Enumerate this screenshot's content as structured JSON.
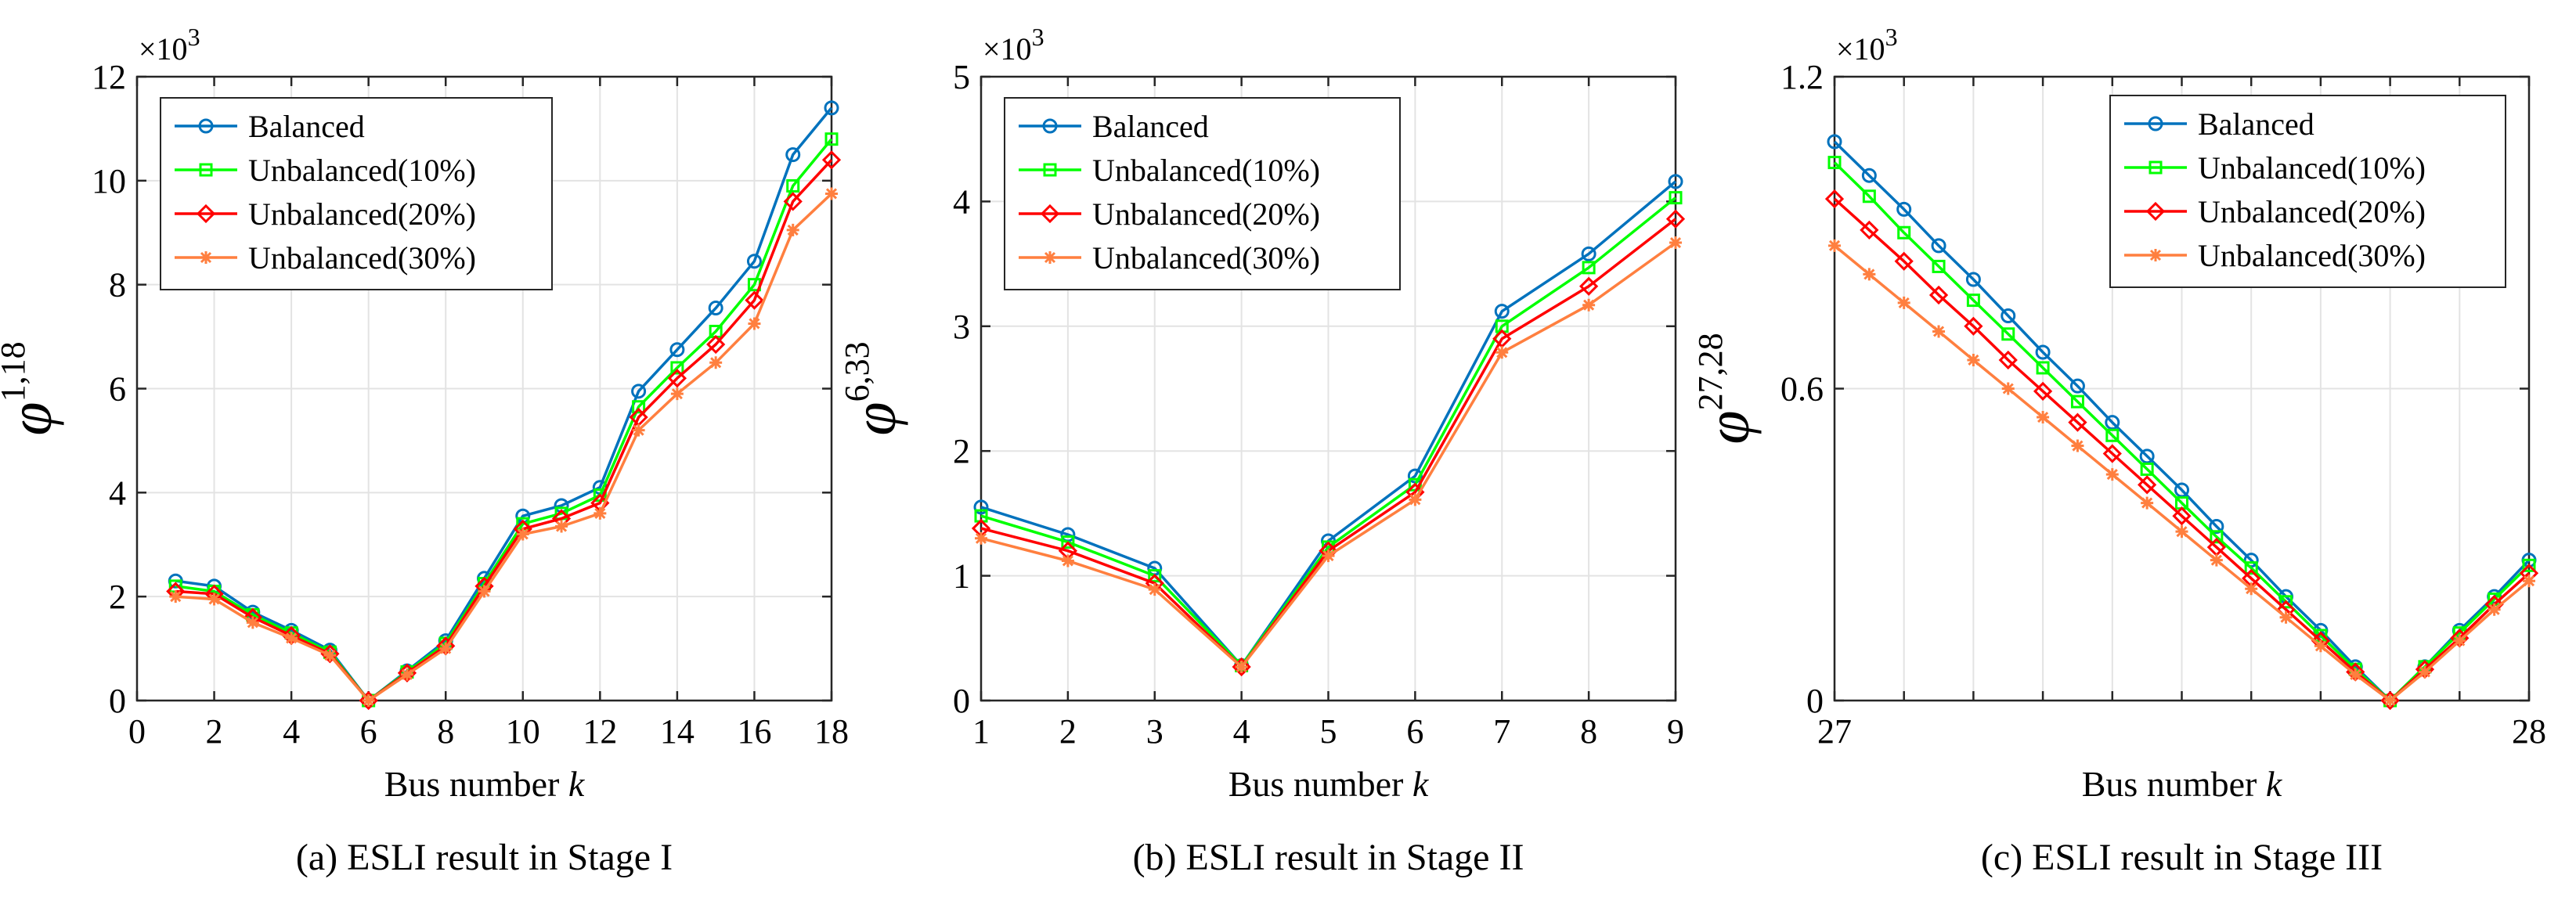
{
  "series_colors": [
    "#0072BD",
    "#00FF00",
    "#FF0000",
    "#FF7F3F"
  ],
  "series_names": [
    "Balanced",
    "Unbalanced(10%)",
    "Unbalanced(20%)",
    "Unbalanced(30%)"
  ],
  "series_markers": [
    "circle",
    "square",
    "diamond",
    "asterisk"
  ],
  "chart_data": [
    {
      "type": "line",
      "caption": "(a) ESLI result in Stage I",
      "xlabel": "Bus number",
      "xlabel_var": "k",
      "ylabel_sym": "φ",
      "ylabel_sup": "1,18",
      "multiplier_base": "×10",
      "multiplier_exp": "3",
      "xlim": [
        0,
        18
      ],
      "ylim": [
        0,
        12
      ],
      "xticks": [
        0,
        2,
        4,
        6,
        8,
        10,
        12,
        14,
        16,
        18
      ],
      "yticks": [
        0,
        2,
        4,
        6,
        8,
        10,
        12
      ],
      "x_tick_labels": [
        "0",
        "2",
        "4",
        "6",
        "8",
        "10",
        "12",
        "14",
        "16",
        "18"
      ],
      "y_tick_labels": [
        "0",
        "2",
        "4",
        "6",
        "8",
        "10",
        "12"
      ],
      "legend": "top-left",
      "grid": true,
      "x": [
        1,
        2,
        3,
        4,
        5,
        6,
        7,
        8,
        9,
        10,
        11,
        12,
        13,
        14,
        15,
        16,
        17,
        18
      ],
      "series": [
        {
          "name": "Balanced",
          "values": [
            2.3,
            2.2,
            1.7,
            1.35,
            0.97,
            0,
            0.57,
            1.15,
            2.35,
            3.55,
            3.75,
            4.1,
            5.95,
            6.75,
            7.55,
            8.45,
            10.5,
            11.4
          ]
        },
        {
          "name": "Unbalanced(10%)",
          "values": [
            2.2,
            2.1,
            1.65,
            1.3,
            0.93,
            0,
            0.55,
            1.1,
            2.25,
            3.4,
            3.6,
            3.95,
            5.65,
            6.4,
            7.1,
            8.0,
            9.9,
            10.8
          ]
        },
        {
          "name": "Unbalanced(20%)",
          "values": [
            2.1,
            2.05,
            1.6,
            1.25,
            0.9,
            0,
            0.53,
            1.05,
            2.2,
            3.3,
            3.5,
            3.8,
            5.45,
            6.2,
            6.85,
            7.7,
            9.6,
            10.4
          ]
        },
        {
          "name": "Unbalanced(30%)",
          "values": [
            2.0,
            1.95,
            1.5,
            1.2,
            0.87,
            0,
            0.5,
            1.0,
            2.1,
            3.2,
            3.35,
            3.6,
            5.2,
            5.9,
            6.5,
            7.25,
            9.05,
            9.75
          ]
        }
      ]
    },
    {
      "type": "line",
      "caption": "(b) ESLI result in Stage II",
      "xlabel": "Bus number",
      "xlabel_var": "k",
      "ylabel_sym": "φ",
      "ylabel_sup": "6,33",
      "multiplier_base": "×10",
      "multiplier_exp": "3",
      "xlim": [
        1,
        9
      ],
      "ylim": [
        0,
        5
      ],
      "xticks": [
        1,
        2,
        3,
        4,
        5,
        6,
        7,
        8,
        9
      ],
      "yticks": [
        0,
        1,
        2,
        3,
        4,
        5
      ],
      "x_tick_labels": [
        "1",
        "2",
        "3",
        "4",
        "5",
        "6",
        "7",
        "8",
        "9"
      ],
      "y_tick_labels": [
        "0",
        "1",
        "2",
        "3",
        "4",
        "5"
      ],
      "legend": "top-left",
      "grid": true,
      "x": [
        1,
        2,
        3,
        4,
        5,
        6,
        7,
        8,
        9
      ],
      "series": [
        {
          "name": "Balanced",
          "values": [
            1.55,
            1.33,
            1.06,
            0.28,
            1.28,
            1.8,
            3.12,
            3.58,
            4.16
          ]
        },
        {
          "name": "Unbalanced(10%)",
          "values": [
            1.48,
            1.27,
            1.0,
            0.28,
            1.23,
            1.73,
            3.0,
            3.47,
            4.03
          ]
        },
        {
          "name": "Unbalanced(20%)",
          "values": [
            1.38,
            1.2,
            0.94,
            0.27,
            1.2,
            1.67,
            2.9,
            3.32,
            3.86
          ]
        },
        {
          "name": "Unbalanced(30%)",
          "values": [
            1.3,
            1.12,
            0.89,
            0.27,
            1.16,
            1.61,
            2.79,
            3.17,
            3.67
          ]
        }
      ]
    },
    {
      "type": "line",
      "caption": "(c) ESLI result in Stage III",
      "xlabel": "Bus number",
      "xlabel_var": "k",
      "ylabel_sym": "φ",
      "ylabel_sup": "27,28",
      "multiplier_base": "×10",
      "multiplier_exp": "3",
      "xlim": [
        0,
        20
      ],
      "ylim": [
        0,
        1.2
      ],
      "xticks": [
        0,
        2,
        4,
        6,
        8,
        10,
        12,
        14,
        16,
        18,
        20
      ],
      "yticks": [
        0,
        0.6,
        1.2
      ],
      "x_tick_labels": [
        "27",
        "",
        "",
        "",
        "",
        "",
        "",
        "",
        "",
        "",
        "28"
      ],
      "y_tick_labels": [
        "0",
        "0.6",
        "1.2"
      ],
      "legend": "top-right",
      "grid": true,
      "x": [
        0,
        1,
        2,
        3,
        4,
        5,
        6,
        7,
        8,
        9,
        10,
        11,
        12,
        13,
        14,
        15,
        16,
        17,
        18,
        19,
        20
      ],
      "series": [
        {
          "name": "Balanced",
          "values": [
            1.075,
            1.01,
            0.945,
            0.875,
            0.81,
            0.74,
            0.67,
            0.605,
            0.535,
            0.47,
            0.405,
            0.335,
            0.27,
            0.2,
            0.135,
            0.065,
            0.0,
            0.065,
            0.135,
            0.2,
            0.27
          ]
        },
        {
          "name": "Unbalanced(10%)",
          "values": [
            1.035,
            0.97,
            0.9,
            0.835,
            0.77,
            0.705,
            0.64,
            0.575,
            0.51,
            0.445,
            0.38,
            0.315,
            0.255,
            0.19,
            0.125,
            0.06,
            0.0,
            0.065,
            0.13,
            0.195,
            0.26
          ]
        },
        {
          "name": "Unbalanced(20%)",
          "values": [
            0.965,
            0.905,
            0.845,
            0.78,
            0.72,
            0.655,
            0.595,
            0.535,
            0.475,
            0.415,
            0.355,
            0.295,
            0.235,
            0.175,
            0.115,
            0.055,
            0.0,
            0.06,
            0.12,
            0.185,
            0.245
          ]
        },
        {
          "name": "Unbalanced(30%)",
          "values": [
            0.875,
            0.82,
            0.765,
            0.71,
            0.655,
            0.6,
            0.545,
            0.49,
            0.435,
            0.38,
            0.325,
            0.27,
            0.215,
            0.16,
            0.105,
            0.05,
            0.0,
            0.055,
            0.115,
            0.175,
            0.23
          ]
        }
      ]
    }
  ]
}
